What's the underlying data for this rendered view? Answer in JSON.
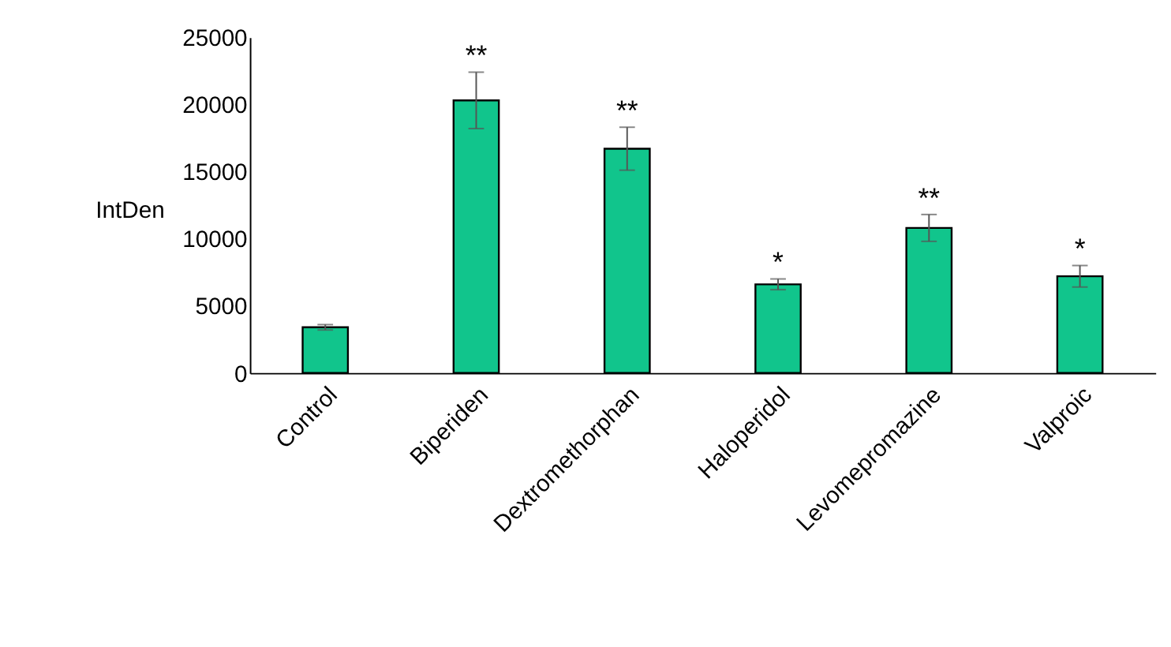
{
  "chart_data": {
    "type": "bar",
    "ylabel": "IntDen",
    "categories": [
      "Control",
      "Biperiden",
      "Dextromethorphan",
      "Haloperidol",
      "Levomepromazine",
      "Valproic"
    ],
    "values": [
      3400,
      20300,
      16700,
      6600,
      10800,
      7200
    ],
    "errors": [
      200,
      2100,
      1600,
      400,
      1000,
      800
    ],
    "color": "#11c58c",
    "ylim": [
      0,
      25000
    ],
    "yticks": [
      0,
      5000,
      10000,
      15000,
      20000,
      25000
    ],
    "grid": false,
    "annotations": [
      {
        "text": "**",
        "x": "Biperiden",
        "y": 22400
      },
      {
        "text": "**",
        "x": "Dextromethorphan",
        "y": 18250
      },
      {
        "text": "*",
        "x": "Haloperidol",
        "y": 7000
      },
      {
        "text": "**",
        "x": "Levomepromazine",
        "y": 11750
      },
      {
        "text": "*",
        "x": "Valproic",
        "y": 8000
      }
    ]
  }
}
